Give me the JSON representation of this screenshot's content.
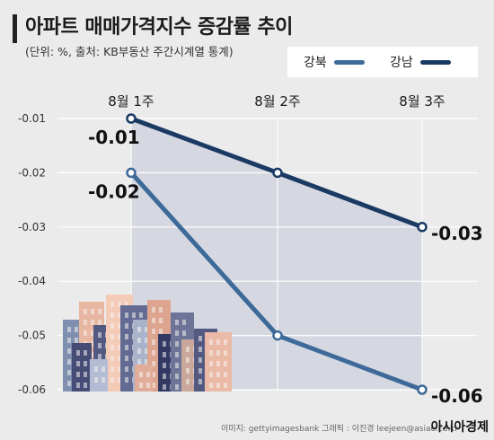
{
  "title": "아파트 매매가격지수 증감률 추이",
  "subtitle": "(단위: %, 출처: KB부동산 주간시계열 통계)",
  "legend": {
    "gangbuk": "강북",
    "gangnam": "강남"
  },
  "credit": "이미지: gettyimagesbank   그래픽 : 이진경 leejeen@asiae.co.kr",
  "logo": "아시아경제",
  "colors": {
    "gangbuk": "#3d6a99",
    "gangnam": "#1b3a63",
    "band": "#d6d8e1",
    "grid": "#ffffff",
    "background": "#ebebeb"
  },
  "chart_data": {
    "type": "line",
    "categories": [
      "8월 1주",
      "8월 2주",
      "8월 3주"
    ],
    "ylim": [
      -0.06,
      -0.01
    ],
    "yticks": [
      "-0.01",
      "-0.02",
      "-0.03",
      "-0.04",
      "-0.05",
      "-0.06"
    ],
    "grid": true,
    "legend_position": "top-right",
    "series": [
      {
        "name": "강북",
        "values": [
          -0.02,
          -0.05,
          -0.06
        ],
        "data_labels": [
          "-0.02",
          "",
          "-0.06"
        ],
        "color": "#3d6a99"
      },
      {
        "name": "강남",
        "values": [
          -0.01,
          -0.02,
          -0.03
        ],
        "data_labels": [
          "-0.01",
          "",
          "-0.03"
        ],
        "color": "#1b3a63"
      }
    ]
  }
}
